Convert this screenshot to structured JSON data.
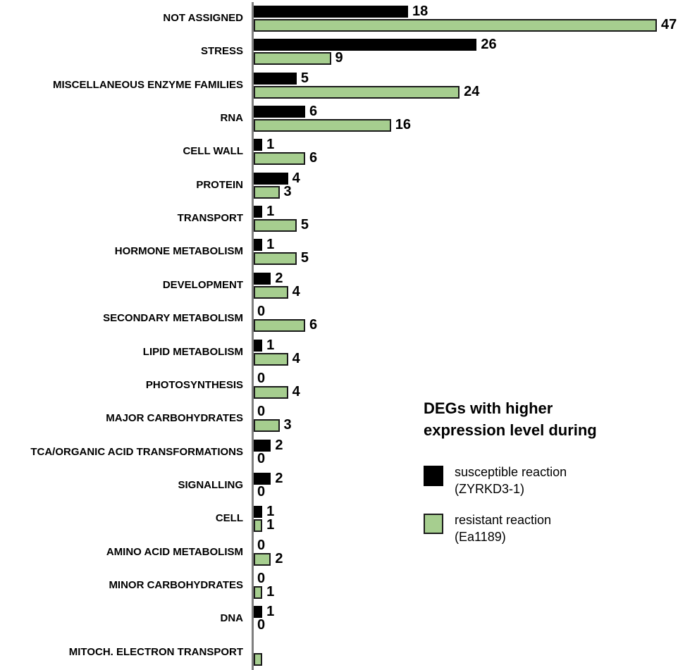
{
  "figure": {
    "background": "#ffffff",
    "axis_color": "#7f7f7f"
  },
  "chart_data": {
    "type": "bar",
    "orientation": "horizontal",
    "grid": false,
    "value_axis_labels_shown": false,
    "data_labels_shown": true,
    "series": [
      {
        "key": "susceptible",
        "name": "susceptible reaction (ZYRKD3-1)",
        "color": "#000000"
      },
      {
        "key": "resistant",
        "name": "resistant reaction (Ea1189)",
        "color": "#a6ce8f",
        "border_color": "#1a1a1a"
      }
    ],
    "rows": [
      {
        "label": "NOT ASSIGNED",
        "susceptible": 18,
        "resistant": 47,
        "susceptible_label": "18",
        "resistant_label": "47"
      },
      {
        "label": "STRESS",
        "susceptible": 26,
        "resistant": 9,
        "susceptible_label": "26",
        "resistant_label": "9"
      },
      {
        "label": "MISCELLANEOUS ENZYME FAMILIES",
        "susceptible": 5,
        "resistant": 24,
        "susceptible_label": "5",
        "resistant_label": "24"
      },
      {
        "label": "RNA",
        "susceptible": 6,
        "resistant": 16,
        "susceptible_label": "6",
        "resistant_label": "16"
      },
      {
        "label": "CELL WALL",
        "susceptible": 1,
        "resistant": 6,
        "susceptible_label": "1",
        "resistant_label": "6"
      },
      {
        "label": "PROTEIN",
        "susceptible": 4,
        "resistant": 3,
        "susceptible_label": "4",
        "resistant_label": "3"
      },
      {
        "label": "TRANSPORT",
        "susceptible": 1,
        "resistant": 5,
        "susceptible_label": "1",
        "resistant_label": "5"
      },
      {
        "label": "HORMONE METABOLISM",
        "susceptible": 1,
        "resistant": 5,
        "susceptible_label": "1",
        "resistant_label": "5"
      },
      {
        "label": "DEVELOPMENT",
        "susceptible": 2,
        "resistant": 4,
        "susceptible_label": "2",
        "resistant_label": "4"
      },
      {
        "label": "SECONDARY METABOLISM",
        "susceptible": 0,
        "resistant": 6,
        "susceptible_label": "0",
        "resistant_label": "6"
      },
      {
        "label": "LIPID METABOLISM",
        "susceptible": 1,
        "resistant": 4,
        "susceptible_label": "1",
        "resistant_label": "4"
      },
      {
        "label": "PHOTOSYNTHESIS",
        "susceptible": 0,
        "resistant": 4,
        "susceptible_label": "0",
        "resistant_label": "4"
      },
      {
        "label": "MAJOR CARBOHYDRATES",
        "susceptible": 0,
        "resistant": 3,
        "susceptible_label": "0",
        "resistant_label": "3"
      },
      {
        "label": "TCA/ORGANIC ACID TRANSFORMATIONS",
        "susceptible": 2,
        "resistant": 0,
        "susceptible_label": "2",
        "resistant_label": "0"
      },
      {
        "label": "SIGNALLING",
        "susceptible": 2,
        "resistant": 0,
        "susceptible_label": "2",
        "resistant_label": "0"
      },
      {
        "label": "CELL",
        "susceptible": 1,
        "resistant": 1,
        "susceptible_label": "1",
        "resistant_label": "1"
      },
      {
        "label": "AMINO ACID METABOLISM",
        "susceptible": 0,
        "resistant": 2,
        "susceptible_label": "0",
        "resistant_label": "2"
      },
      {
        "label": "MINOR CARBOHYDRATES",
        "susceptible": 0,
        "resistant": 1,
        "susceptible_label": "0",
        "resistant_label": "1"
      },
      {
        "label": "DNA",
        "susceptible": 1,
        "resistant": 0,
        "susceptible_label": "1",
        "resistant_label": "0"
      },
      {
        "label": "MITOCH. ELECTRON TRANSPORT",
        "susceptible": 0,
        "resistant": 1,
        "susceptible_label": "",
        "resistant_label": ""
      }
    ]
  },
  "legend": {
    "title_line1": "DEGs with higher",
    "title_line2": "expression level during",
    "items": [
      {
        "name": "susceptible",
        "color": "#000000",
        "line1": "susceptible reaction",
        "line2": "(ZYRKD3-1)"
      },
      {
        "name": "resistant",
        "color": "#a6ce8f",
        "line1": "resistant reaction",
        "line2": "(Ea1189)"
      }
    ]
  }
}
